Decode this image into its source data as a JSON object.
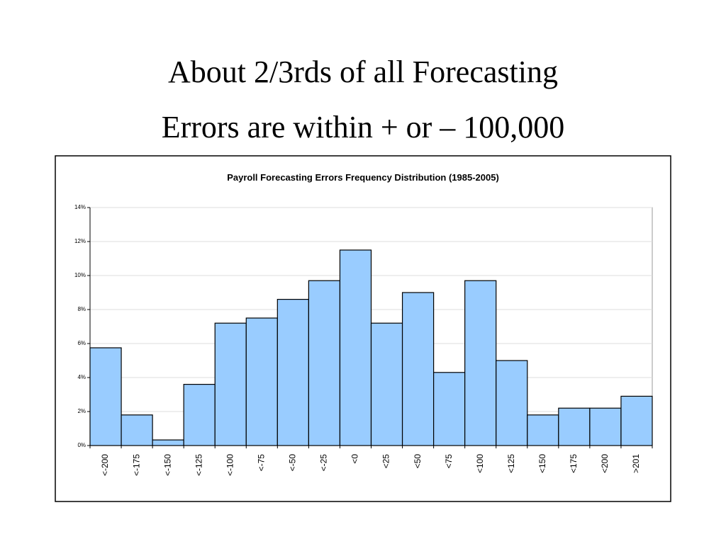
{
  "slide": {
    "title": [
      "About 2/3rds of all Forecasting",
      "Errors are within + or – 100,000"
    ]
  },
  "chart_data": {
    "type": "bar",
    "title": "Payroll Forecasting Errors Frequency Distribution (1985-2005)",
    "categories": [
      "<-200",
      "<-175",
      "<-150",
      "<-125",
      "<-100",
      "<-75",
      "<-50",
      "<-25",
      "<0",
      "<25",
      "<50",
      "<75",
      "<100",
      "<125",
      "<150",
      "<175",
      "<200",
      ">201"
    ],
    "values": [
      5.75,
      1.8,
      0.33,
      3.6,
      7.2,
      7.5,
      8.6,
      9.7,
      11.5,
      7.2,
      9.0,
      4.3,
      9.7,
      5.0,
      1.8,
      2.2,
      2.2,
      2.9
    ],
    "color": "#99ccff",
    "ylim": [
      0,
      14
    ],
    "yticks": [
      {
        "value": 0,
        "label": "0%"
      },
      {
        "value": 2,
        "label": "2%"
      },
      {
        "value": 4,
        "label": "4%"
      },
      {
        "value": 6,
        "label": "6%"
      },
      {
        "value": 8,
        "label": "8%"
      },
      {
        "value": 10,
        "label": "10%"
      },
      {
        "value": 12,
        "label": "12%"
      },
      {
        "value": 14,
        "label": "14%"
      }
    ],
    "grid": true
  }
}
